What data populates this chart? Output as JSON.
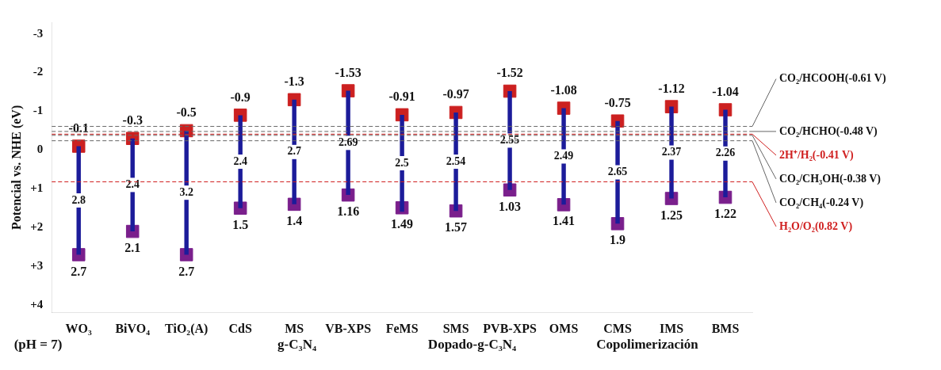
{
  "chart_data": {
    "type": "bar",
    "ylabel": "Potencial vs. NHE (eV)",
    "categories": [
      "WO₃",
      "BiVO₄",
      "TiO₂(A)",
      "CdS",
      "MS",
      "VB-XPS",
      "FeMS",
      "SMS",
      "PVB-XPS",
      "OMS",
      "CMS",
      "IMS",
      "BMS"
    ],
    "ylim": [
      4.2,
      -3.3
    ],
    "yticks": [
      -3,
      -2,
      -1,
      0,
      {
        "value": 1,
        "label": "+1"
      },
      {
        "value": 2,
        "label": "+2"
      },
      {
        "value": 3,
        "label": "+3"
      },
      {
        "value": 4,
        "label": "+4"
      }
    ],
    "series": [
      {
        "color": "#1c1c9a",
        "base": [
          -0.1,
          -0.3,
          -0.5,
          -0.9,
          -1.3,
          -1.53,
          -0.91,
          -0.97,
          -1.52,
          -1.08,
          -0.75,
          -1.12,
          -1.04
        ],
        "values": [
          2.8,
          2.4,
          3.2,
          2.4,
          2.7,
          2.69,
          2.5,
          2.54,
          2.55,
          2.49,
          2.65,
          2.37,
          2.26
        ],
        "value_labels": [
          "2.8",
          "2.4",
          "3.2",
          "2.4",
          "2.7",
          "2.69",
          "2.5",
          "2.54",
          "2.55",
          "2.49",
          "2.65",
          "2.37",
          "2.26"
        ]
      },
      {
        "type": "scatter",
        "color": "#cc2020",
        "values": [
          -0.1,
          -0.3,
          -0.5,
          -0.9,
          -1.3,
          -1.53,
          -0.91,
          -0.97,
          -1.52,
          -1.08,
          -0.75,
          -1.12,
          -1.04
        ],
        "value_labels": [
          "-0.1",
          "-0.3",
          "-0.5",
          "-0.9",
          "-1.3",
          "-1.53",
          "-0.91",
          "-0.97",
          "-1.52",
          "-1.08",
          "-0.75",
          "-1.12",
          "-1.04"
        ]
      },
      {
        "type": "scatter",
        "color": "#7a1f8c",
        "values": [
          2.7,
          2.1,
          2.7,
          1.5,
          1.4,
          1.16,
          1.49,
          1.57,
          1.03,
          1.41,
          1.9,
          1.25,
          1.22
        ],
        "value_labels": [
          "2.7",
          "2.1",
          "2.7",
          "1.5",
          "1.4",
          "1.16",
          "1.49",
          "1.57",
          "1.03",
          "1.41",
          "1.9",
          "1.25",
          "1.22"
        ]
      }
    ],
    "marker": "square",
    "ref_lines": [
      {
        "axis": "y",
        "value": -0.61,
        "label": "CO₂/HCOOH(-0.61 V)",
        "color": "#666666",
        "line_style": "dashed"
      },
      {
        "axis": "y",
        "value": -0.48,
        "label": "CO₂/HCHO(-0.48 V)",
        "color": "#666666",
        "line_style": "dashed"
      },
      {
        "axis": "y",
        "value": -0.41,
        "label": "2H⁺/H₂(-0.41 V)",
        "color": "#d02020",
        "line_style": "dashed"
      },
      {
        "axis": "y",
        "value": -0.38,
        "label": "CO₂/CH₃OH(-0.38 V)",
        "color": "#666666",
        "line_style": "dashed"
      },
      {
        "axis": "y",
        "value": -0.24,
        "label": "CO₂/CH₄(-0.24 V)",
        "color": "#666666",
        "line_style": "dashed"
      },
      {
        "axis": "y",
        "value": 0.82,
        "label": "H₂O/O₂(0.82 V)",
        "color": "#d02020",
        "line_style": "dashed"
      }
    ],
    "annotations": [
      "(pH = 7)",
      "g-C₃N₄",
      "Dopado-g-C₃N₄",
      "Copolimerización"
    ],
    "grid": false,
    "legend": false
  }
}
